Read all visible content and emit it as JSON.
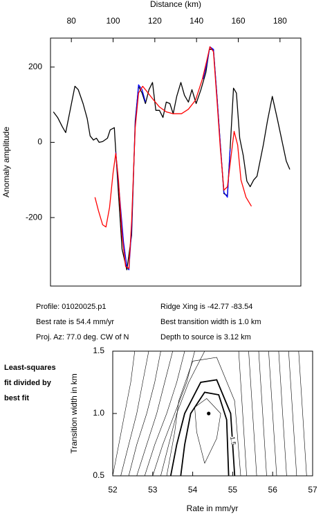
{
  "chart_data": [
    {
      "type": "line",
      "x_label": "Distance (km)",
      "y_label": "Anomaly amplitude",
      "xlim": [
        70,
        190
      ],
      "ylim": [
        -382,
        277
      ],
      "xticks": [
        80,
        100,
        120,
        140,
        160,
        180
      ],
      "yticks": [
        -200,
        0,
        200
      ],
      "x_axis_position": "top",
      "series": [
        {
          "color": "#000000",
          "x": [
            71.4,
            73.4,
            75.7,
            77.3,
            81.7,
            83.3,
            85.6,
            87.6,
            89,
            90.6,
            92,
            93.3,
            95,
            97.3,
            98.6,
            100.6,
            101,
            102.6,
            104.3,
            106.6,
            108.9,
            110.6,
            112.2,
            113.9,
            115.5,
            117.2,
            118.9,
            120.5,
            122.2,
            123.9,
            125.5,
            127.2,
            128.8,
            130.5,
            132.5,
            134.2,
            136.1,
            137.8,
            139.8,
            142.1,
            144.5,
            146.1,
            148.1,
            149.8,
            151.4,
            153.1,
            154.8,
            156.4,
            157.7,
            159.1,
            160.7,
            162.4,
            164.1,
            165.7,
            167.4,
            169,
            172,
            174,
            176.3,
            178.7,
            181,
            183,
            184.7
          ],
          "values": [
            81,
            66,
            41,
            26,
            149,
            140,
            103,
            63,
            17,
            6,
            11,
            0,
            2,
            11,
            33,
            39,
            2,
            -136,
            -284,
            -339,
            -247,
            57,
            149,
            131,
            103,
            140,
            159,
            85,
            85,
            66,
            107,
            103,
            76,
            122,
            159,
            125,
            107,
            140,
            103,
            140,
            186,
            247,
            247,
            122,
            -7,
            -136,
            -142,
            11,
            144,
            131,
            11,
            -35,
            -103,
            -118,
            -100,
            -90,
            -7,
            57,
            122,
            63,
            2,
            -50,
            -72
          ]
        },
        {
          "color": "#0000ff",
          "x": [
            101.3,
            103.3,
            105,
            106.6,
            107.6,
            108.9,
            110.6,
            112.2,
            113.9,
            115.5,
            130,
            143.1,
            144.8,
            146.4,
            148.1,
            149.8,
            151.4,
            153.1,
            154.8,
            156.1
          ],
          "values": [
            -26,
            -155,
            -265,
            -330,
            -339,
            -229,
            48,
            153,
            140,
            107,
            null,
            168,
            205,
            254,
            247,
            122,
            -7,
            -133,
            -146,
            -17
          ]
        },
        {
          "color": "#ff0000",
          "x": [
            91.3,
            93,
            95,
            96.6,
            98.3,
            100,
            101.3,
            102.6,
            104.3,
            106,
            107.6,
            108.9,
            110.6,
            112.2,
            114.2,
            116.2,
            118.9,
            122.2,
            125.5,
            128.8,
            132.8,
            136.1,
            139.5,
            142.8,
            144.8,
            146.4,
            148.1,
            149.8,
            151.4,
            153.1,
            154.8,
            156.4,
            158,
            159.7,
            161.3,
            163.7,
            166.3
          ],
          "values": [
            -146,
            -182,
            -219,
            -225,
            -173,
            -81,
            -29,
            -100,
            -247,
            -330,
            -335,
            -210,
            39,
            131,
            149,
            135,
            116,
            94,
            81,
            76,
            76,
            88,
            112,
            168,
            214,
            254,
            241,
            112,
            -17,
            -127,
            -118,
            -44,
            29,
            -7,
            -100,
            -146,
            -170
          ]
        }
      ]
    },
    {
      "type": "contour",
      "x_label": "Rate in mm/yr",
      "y_label": "Transition width in km",
      "xlim": [
        52,
        57
      ],
      "ylim": [
        0.5,
        1.5
      ],
      "xticks": [
        52,
        53,
        54,
        55,
        56,
        57
      ],
      "yticks": [
        {
          "value": 0.5,
          "label": "0.5"
        },
        {
          "value": 1,
          "label": "1.0"
        },
        {
          "value": 1.5,
          "label": "1.5"
        }
      ],
      "point": {
        "x": 54.4,
        "y": 1.0
      },
      "contour_label": "1.5",
      "contours": [
        {
          "x": [
            52.0,
            52.15,
            52.3,
            52.45,
            52.55
          ],
          "y": [
            0.5,
            0.75,
            1,
            1.25,
            1.5
          ]
        },
        {
          "x": [
            52.2,
            52.4,
            52.6,
            52.75,
            52.9
          ],
          "y": [
            0.5,
            0.75,
            1,
            1.25,
            1.5
          ]
        },
        {
          "x": [
            52.4,
            52.6,
            52.85,
            53.05,
            53.2
          ],
          "y": [
            0.5,
            0.75,
            1,
            1.25,
            1.5
          ]
        },
        {
          "x": [
            52.6,
            52.85,
            53.1,
            53.3,
            53.5
          ],
          "y": [
            0.5,
            0.75,
            1,
            1.25,
            1.5
          ]
        },
        {
          "x": [
            52.8,
            53.05,
            53.35,
            53.6,
            53.8
          ],
          "y": [
            0.5,
            0.75,
            1,
            1.25,
            1.5
          ]
        },
        {
          "x": [
            53.0,
            53.25,
            53.55,
            53.85,
            54.05
          ],
          "y": [
            0.5,
            0.75,
            1,
            1.25,
            1.5
          ]
        },
        {
          "x": [
            53.2,
            53.4,
            53.6,
            53.9,
            54.3
          ],
          "y": [
            0.5,
            0.75,
            1,
            1.25,
            1.5
          ]
        },
        {
          "x": [
            53.35,
            53.55,
            53.65,
            54.0,
            54.6,
            55.05,
            55.2
          ],
          "y": [
            0.5,
            0.85,
            1.1,
            1.42,
            1.45,
            1.1,
            0.5
          ]
        },
        {
          "x": [
            53.45,
            53.6,
            53.8,
            54.2,
            54.6,
            54.95,
            55.05
          ],
          "y": [
            0.5,
            0.75,
            1,
            1.25,
            1.27,
            1,
            0.5
          ],
          "bold": true
        },
        {
          "x": [
            53.7,
            53.8,
            53.95,
            54.3,
            54.65,
            54.85,
            54.9
          ],
          "y": [
            0.5,
            0.75,
            1,
            1.17,
            1.15,
            0.95,
            0.5
          ],
          "bold": true
        },
        {
          "x": [
            54.3,
            54.1,
            54.05,
            54.35,
            54.7,
            54.6,
            54.3
          ],
          "y": [
            0.6,
            0.85,
            1.05,
            1.12,
            1,
            0.8,
            0.6
          ]
        },
        {
          "x": [
            55.35,
            55.3,
            55.25,
            55.2,
            55.15
          ],
          "y": [
            0.5,
            0.75,
            1,
            1.25,
            1.5
          ]
        },
        {
          "x": [
            55.6,
            55.55,
            55.5,
            55.45,
            55.4
          ],
          "y": [
            0.5,
            0.75,
            1,
            1.25,
            1.5
          ]
        },
        {
          "x": [
            55.85,
            55.8,
            55.75,
            55.7,
            55.65
          ],
          "y": [
            0.5,
            0.75,
            1,
            1.25,
            1.5
          ]
        },
        {
          "x": [
            56.1,
            56.05,
            56.0,
            55.95,
            55.9
          ],
          "y": [
            0.5,
            0.75,
            1,
            1.25,
            1.5
          ]
        },
        {
          "x": [
            56.35,
            56.3,
            56.25,
            56.2,
            56.15
          ],
          "y": [
            0.5,
            0.75,
            1,
            1.25,
            1.5
          ]
        },
        {
          "x": [
            56.6,
            56.55,
            56.5,
            56.45,
            56.4
          ],
          "y": [
            0.5,
            0.75,
            1,
            1.25,
            1.5
          ]
        },
        {
          "x": [
            56.85,
            56.8,
            56.75,
            56.7,
            56.65
          ],
          "y": [
            0.5,
            0.75,
            1,
            1.25,
            1.5
          ]
        }
      ]
    }
  ],
  "info": [
    "Profile: 01020025.p1",
    "Best rate is 54.4 mm/yr",
    "Proj. Az: 77.0 deg. CW of N",
    "Ridge Xing is -42.77 -83.54",
    "Best transition width is 1.0 km",
    "Depth to source is   3.12 km"
  ],
  "side_note": [
    "Least-squares",
    "fit divided by",
    "best fit"
  ]
}
